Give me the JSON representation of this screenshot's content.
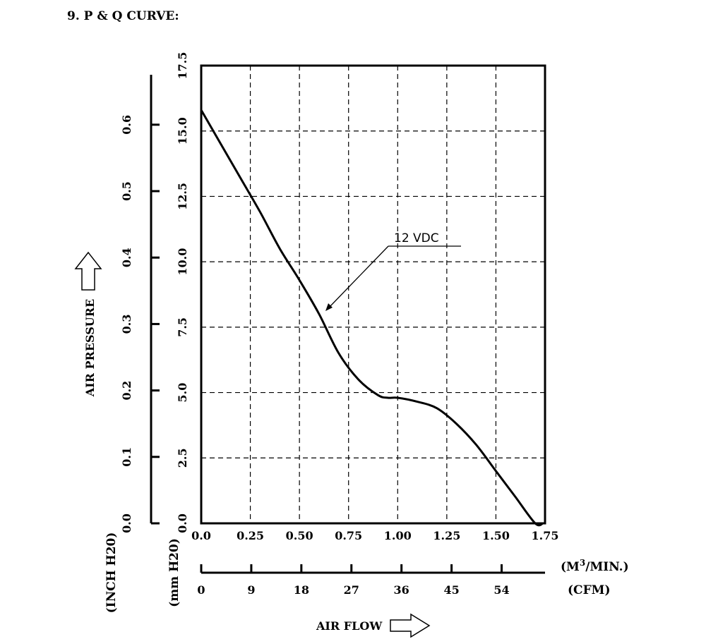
{
  "heading": "9. P & Q CURVE:",
  "chart_data": {
    "type": "line",
    "grid": true,
    "series": [
      {
        "name": "12 VDC",
        "x": [
          0.0,
          0.1,
          0.2,
          0.3,
          0.4,
          0.5,
          0.6,
          0.7,
          0.8,
          0.9,
          0.95,
          1.0,
          1.1,
          1.2,
          1.3,
          1.4,
          1.5,
          1.6,
          1.7,
          1.74
        ],
        "y": [
          15.8,
          14.5,
          13.2,
          11.9,
          10.5,
          9.3,
          8.0,
          6.5,
          5.5,
          4.9,
          4.8,
          4.8,
          4.65,
          4.4,
          3.8,
          3.0,
          2.0,
          1.0,
          0.0,
          0.0
        ]
      }
    ],
    "x_primary": {
      "label": "(M 3/MIN.)",
      "unit_base": "(M",
      "unit_sup": "3",
      "unit_tail": "/MIN.)",
      "ticks": [
        "0.0",
        "0.25",
        "0.50",
        "0.75",
        "1.00",
        "1.25",
        "1.50",
        "1.75"
      ],
      "range": [
        0,
        1.75
      ]
    },
    "x_secondary": {
      "label": "(CFM)",
      "ticks": [
        "0",
        "9",
        "18",
        "27",
        "36",
        "45",
        "54"
      ]
    },
    "xlabel": "AIR FLOW",
    "y_primary": {
      "label": "(mm H20)",
      "ticks": [
        "0.0",
        "2.5",
        "5.0",
        "7.5",
        "10.0",
        "12.5",
        "15.0",
        "17.5"
      ],
      "range": [
        0,
        17.5
      ]
    },
    "y_secondary": {
      "label": "(INCH H20)",
      "ticks": [
        "0.0",
        "0.1",
        "0.2",
        "0.3",
        "0.4",
        "0.5",
        "0.6"
      ]
    },
    "ylabel": "AIR PRESSURE"
  }
}
